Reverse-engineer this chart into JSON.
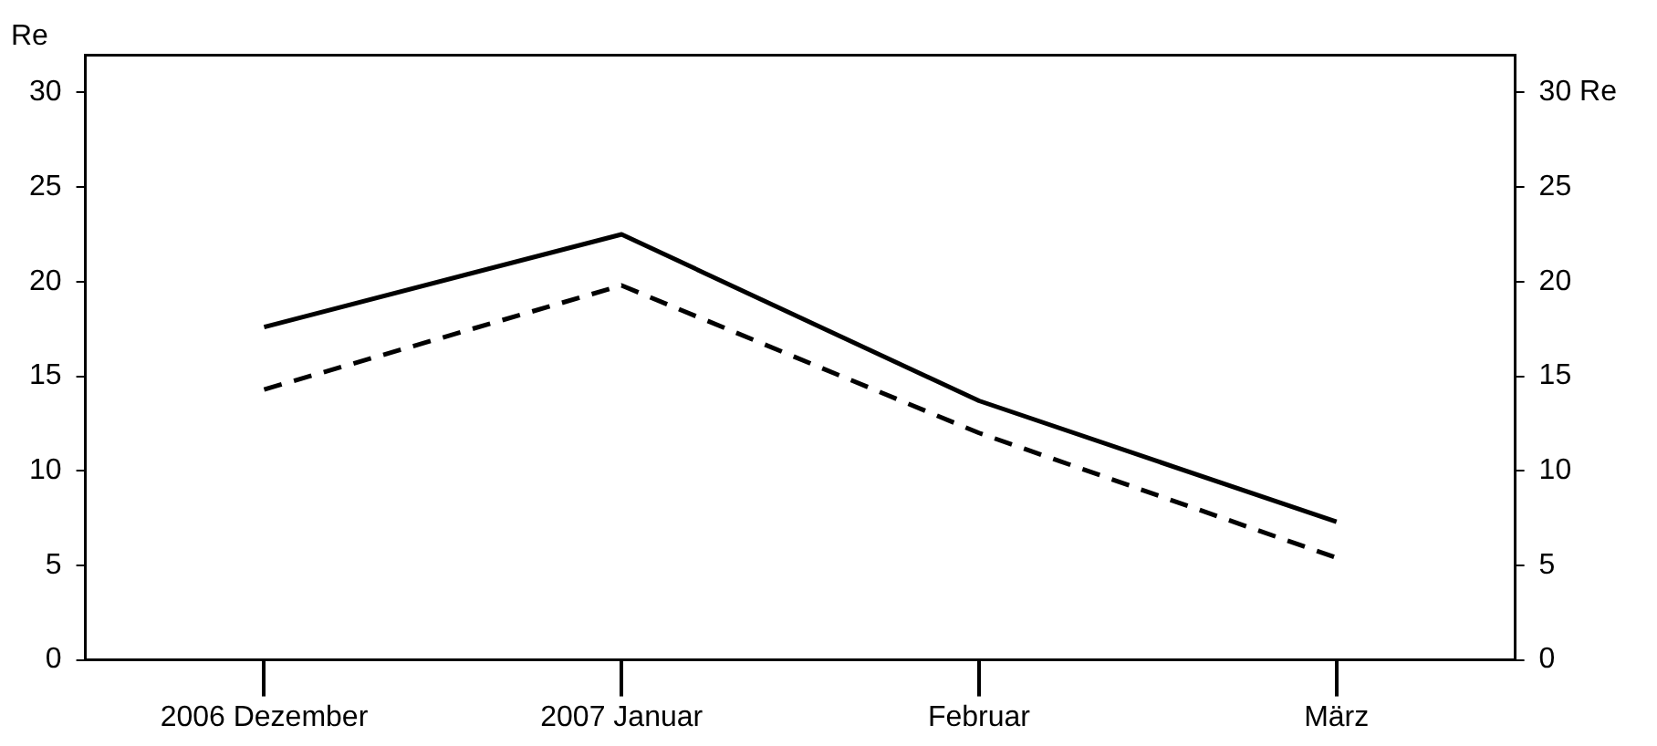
{
  "chart_data": {
    "type": "line",
    "ylabel": "Re",
    "categories": [
      "2006 Dezember",
      "2007 Januar",
      "Februar",
      "März"
    ],
    "series": [
      {
        "color": "#000000",
        "line_style": "solid",
        "values": [
          17.6,
          22.5,
          13.7,
          7.3
        ]
      },
      {
        "color": "#000000",
        "line_style": "dashed",
        "values": [
          14.3,
          19.8,
          12.0,
          5.4
        ]
      }
    ],
    "ylim": [
      0,
      32
    ],
    "yticks": [
      0,
      5,
      10,
      15,
      20,
      25,
      30
    ],
    "y2lim": [
      0,
      32
    ],
    "y2ticks": [
      0,
      5,
      10,
      15,
      20,
      25,
      {
        "value": 30,
        "label": "30 Re"
      }
    ],
    "grid": false,
    "legend": false,
    "marker": "none"
  }
}
